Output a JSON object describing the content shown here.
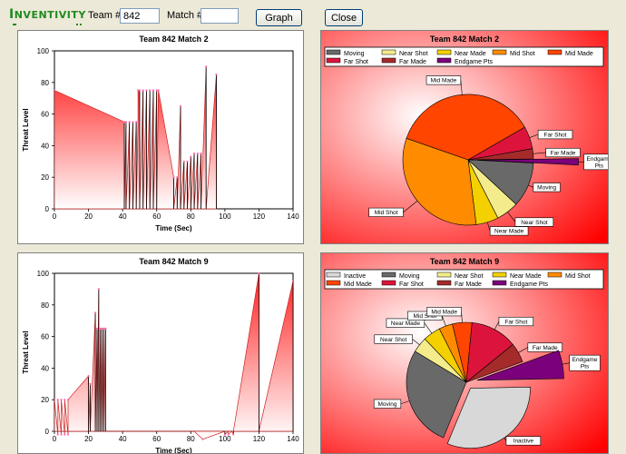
{
  "toolbar": {
    "logo_text": "NVENTIVITY",
    "logo_initial": "I",
    "team_label": "Team #",
    "team_value": "842",
    "match_label": "Match #",
    "match_value": "",
    "graph_button": "Graph",
    "close_button": "Close"
  },
  "colors": {
    "area_fill_start": "#ffffff",
    "area_fill_end": "#ff2020",
    "area_line": "#cc2020",
    "pie_bg_center": "#ffffff",
    "pie_bg_edge": "#ff0000",
    "Inactive": "#d8d8d8",
    "Moving": "#696969",
    "Near Shot": "#f4ec8c",
    "Near Made": "#f4d000",
    "Mid Shot": "#ff8c00",
    "Mid Made": "#ff4500",
    "Far Shot": "#dc143c",
    "Far Made": "#a52a2a",
    "Endgame Pts": "#7b007b"
  },
  "chart_data": [
    {
      "type": "area",
      "title": "Team 842   Match 2",
      "xlabel": "Time (Sec)",
      "ylabel": "Threat Level",
      "xlim": [
        0,
        140
      ],
      "ylim": [
        0,
        100
      ],
      "xticks": [
        0,
        20,
        40,
        60,
        80,
        100,
        120,
        140
      ],
      "yticks": [
        0,
        20,
        40,
        60,
        80,
        100
      ],
      "grid": false,
      "series": [
        {
          "x": [
            0,
            0,
            41,
            41,
            42,
            42,
            44,
            44,
            46,
            46,
            48,
            48,
            49,
            49,
            50,
            50,
            52,
            52,
            54,
            54,
            56,
            56,
            58,
            58,
            60,
            60,
            61,
            61,
            70,
            70,
            72,
            72,
            74,
            74,
            76,
            76,
            78,
            78,
            80,
            80,
            82,
            82,
            84,
            84,
            86,
            86,
            89,
            89,
            95,
            95
          ],
          "y": [
            0,
            75,
            55,
            0,
            55,
            0,
            55,
            0,
            55,
            0,
            55,
            0,
            55,
            75,
            75,
            0,
            75,
            0,
            75,
            0,
            75,
            0,
            75,
            0,
            75,
            0,
            75,
            75,
            20,
            0,
            20,
            0,
            65,
            0,
            30,
            0,
            30,
            0,
            33,
            0,
            35,
            0,
            35,
            0,
            35,
            0,
            90,
            0,
            85,
            0
          ]
        }
      ]
    },
    {
      "type": "pie",
      "title": "Team 842   Match 2",
      "legend_position": "top",
      "slices": [
        {
          "label": "Moving",
          "value": 11
        },
        {
          "label": "Near Shot",
          "value": 5.5
        },
        {
          "label": "Near Made",
          "value": 5.5
        },
        {
          "label": "Mid Shot",
          "value": 32
        },
        {
          "label": "Mid Made",
          "value": 36
        },
        {
          "label": "Far Shot",
          "value": 5.5
        },
        {
          "label": "Far Made",
          "value": 2.5
        },
        {
          "label": "Endgame Pts",
          "value": 1
        }
      ],
      "legend": [
        "Moving",
        "Near Shot",
        "Near Made",
        "Mid Shot",
        "Mid Made",
        "Far Shot",
        "Far Made",
        "Endgame Pts"
      ],
      "slice_labels": {
        "Moving": "Moving",
        "Near Shot": "Near Shot",
        "Near Made": "Near Made",
        "Mid Shot": "Mid Shot",
        "Mid Made": "Mid Made",
        "Far Shot": "Far Shot",
        "Far Made": "Far Made",
        "Endgame Pts": [
          "Endgame",
          "Pts"
        ]
      },
      "exploded": [
        "Endgame Pts"
      ]
    },
    {
      "type": "area",
      "title": "Team 842   Match 9",
      "xlabel": "Time (Sec)",
      "ylabel": "Threat Level",
      "xlim": [
        0,
        140
      ],
      "ylim": [
        0,
        100
      ],
      "xticks": [
        0,
        20,
        40,
        60,
        80,
        100,
        120,
        140
      ],
      "yticks": [
        0,
        20,
        40,
        60,
        80,
        100
      ],
      "grid": false,
      "series": [
        {
          "x": [
            0,
            0,
            2,
            2,
            4,
            4,
            6,
            6,
            8,
            8,
            20,
            20,
            21,
            21,
            24,
            24,
            25,
            25,
            26,
            26,
            27,
            27,
            28,
            28,
            29,
            29,
            30,
            30,
            82,
            87,
            100,
            100,
            102,
            102,
            104,
            104,
            105,
            105,
            120,
            120,
            140,
            140
          ],
          "y": [
            0,
            20,
            -2,
            20,
            -2,
            20,
            -2,
            20,
            -2,
            20,
            35,
            0,
            30,
            0,
            75,
            0,
            65,
            0,
            90,
            0,
            65,
            0,
            65,
            0,
            65,
            0,
            65,
            0,
            0,
            -5,
            0,
            -2,
            0,
            -2,
            0,
            0,
            -2,
            0,
            100,
            0,
            95,
            0
          ]
        }
      ]
    },
    {
      "type": "pie",
      "title": "Team 842   Match 9",
      "legend_position": "top",
      "slices": [
        {
          "label": "Inactive",
          "value": 30
        },
        {
          "label": "Moving",
          "value": 26
        },
        {
          "label": "Near Shot",
          "value": 4
        },
        {
          "label": "Near Made",
          "value": 4.5
        },
        {
          "label": "Mid Shot",
          "value": 3.5
        },
        {
          "label": "Mid Made",
          "value": 5
        },
        {
          "label": "Far Shot",
          "value": 12
        },
        {
          "label": "Far Made",
          "value": 5
        },
        {
          "label": "Endgame Pts",
          "value": 5
        }
      ],
      "legend": [
        "Inactive",
        "Moving",
        "Near Shot",
        "Near Made",
        "Mid Shot",
        "Mid Made",
        "Far Shot",
        "Far Made",
        "Endgame Pts"
      ],
      "slice_labels": {
        "Inactive": "Inactive",
        "Moving": "Moving",
        "Near Shot": "Near Shot",
        "Near Made": "Near Made",
        "Mid Shot": "Mid Shot",
        "Mid Made": "Mid Made",
        "Far Shot": "Far Shot",
        "Far Made": "Far Made",
        "Endgame Pts": [
          "Endgame",
          "Pts"
        ]
      },
      "exploded": [
        "Inactive",
        "Endgame Pts"
      ]
    }
  ]
}
